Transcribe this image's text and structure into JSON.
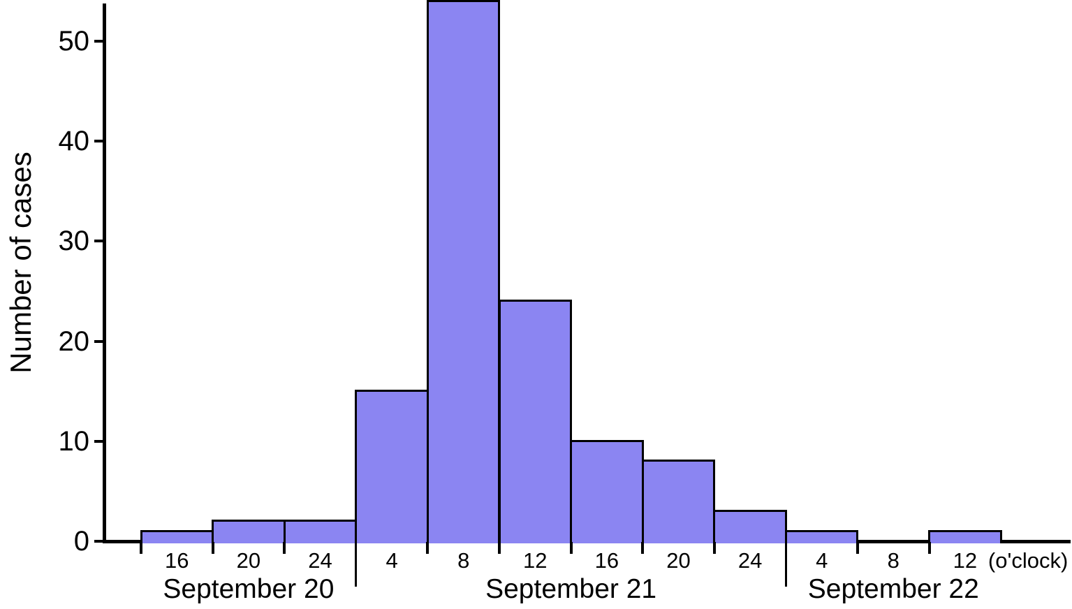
{
  "chart_data": {
    "type": "bar",
    "title": "",
    "ylabel": "Number of cases",
    "xlabel": "",
    "x_unit_suffix": "(o'clock)",
    "ylim": [
      0,
      54
    ],
    "yticks": [
      0,
      10,
      20,
      30,
      40,
      50
    ],
    "grid": false,
    "legend": "none",
    "bar_color": "#8b85f2",
    "bar_border_color": "#000000",
    "axis_color": "#000000",
    "groups": [
      {
        "label": "September 20",
        "hours": [
          "16",
          "20",
          "24"
        ],
        "values": [
          1,
          2,
          2
        ]
      },
      {
        "label": "September 21",
        "hours": [
          "4",
          "8",
          "12",
          "16",
          "20",
          "24"
        ],
        "values": [
          15,
          54,
          24,
          10,
          8,
          3
        ]
      },
      {
        "label": "September 22",
        "hours": [
          "4",
          "8",
          "12"
        ],
        "values": [
          1,
          0,
          1
        ]
      }
    ],
    "values_flat": [
      1,
      2,
      2,
      15,
      54,
      24,
      10,
      8,
      3,
      1,
      0,
      1
    ]
  }
}
